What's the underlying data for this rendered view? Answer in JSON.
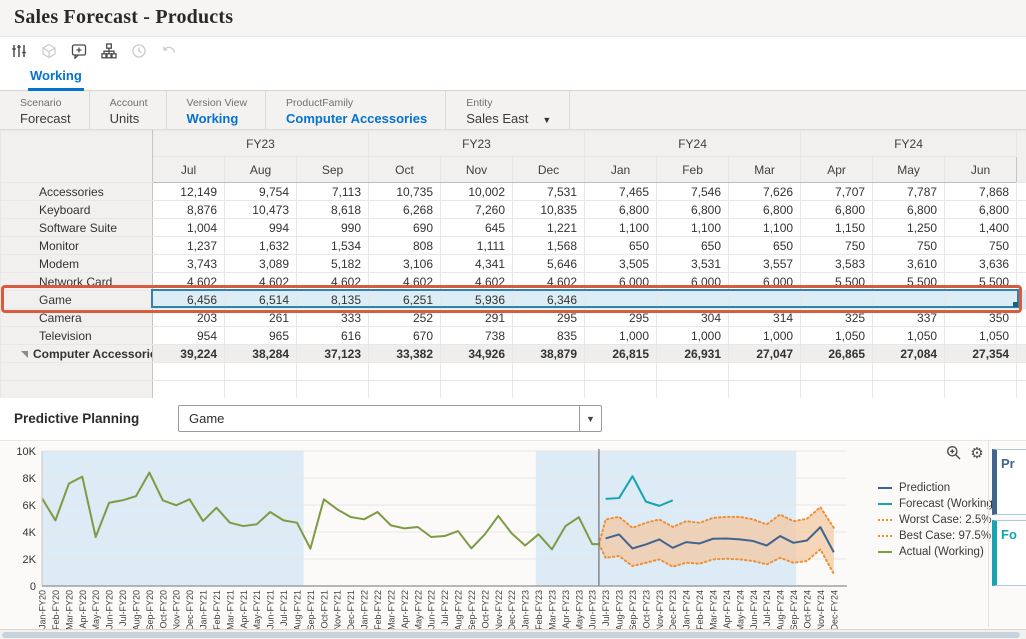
{
  "window": {
    "title": "Sales Forecast - Products"
  },
  "toolbar": {
    "icons": [
      {
        "name": "adjust-sliders-icon",
        "enabled": true
      },
      {
        "name": "cube-icon",
        "enabled": false
      },
      {
        "name": "comment-add-icon",
        "enabled": true
      },
      {
        "name": "hierarchy-icon",
        "enabled": true
      },
      {
        "name": "history-icon",
        "enabled": false
      },
      {
        "name": "undo-icon",
        "enabled": false
      }
    ]
  },
  "tabs": [
    {
      "label": "Working",
      "active": true
    }
  ],
  "pov": {
    "items": [
      {
        "label": "Scenario",
        "value": "Forecast",
        "link": false,
        "dropdown": false
      },
      {
        "label": "Account",
        "value": "Units",
        "link": false,
        "dropdown": false
      },
      {
        "label": "Version View",
        "value": "Working",
        "link": true,
        "dropdown": false
      },
      {
        "label": "ProductFamily",
        "value": "Computer Accessories",
        "link": true,
        "dropdown": false
      },
      {
        "label": "Entity",
        "value": "Sales East",
        "link": false,
        "dropdown": true
      }
    ]
  },
  "grid": {
    "column_groups": [
      {
        "label": "FY23",
        "months": [
          "Jul",
          "Aug",
          "Sep"
        ]
      },
      {
        "label": "FY23",
        "months": [
          "Oct",
          "Nov",
          "Dec"
        ]
      },
      {
        "label": "FY24",
        "months": [
          "Jan",
          "Feb",
          "Mar"
        ]
      },
      {
        "label": "FY24",
        "months": [
          "Apr",
          "May",
          "Jun"
        ]
      }
    ],
    "rows": [
      {
        "label": "Accessories",
        "values": [
          "12,149",
          "9,754",
          "7,113",
          "10,735",
          "10,002",
          "7,531",
          "7,465",
          "7,546",
          "7,626",
          "7,707",
          "7,787",
          "7,868"
        ]
      },
      {
        "label": "Keyboard",
        "values": [
          "8,876",
          "10,473",
          "8,618",
          "6,268",
          "7,260",
          "10,835",
          "6,800",
          "6,800",
          "6,800",
          "6,800",
          "6,800",
          "6,800"
        ]
      },
      {
        "label": "Software Suite",
        "values": [
          "1,004",
          "994",
          "990",
          "690",
          "645",
          "1,221",
          "1,100",
          "1,100",
          "1,100",
          "1,150",
          "1,250",
          "1,400"
        ]
      },
      {
        "label": "Monitor",
        "values": [
          "1,237",
          "1,632",
          "1,534",
          "808",
          "1,111",
          "1,568",
          "650",
          "650",
          "650",
          "750",
          "750",
          "750"
        ]
      },
      {
        "label": "Modem",
        "values": [
          "3,743",
          "3,089",
          "5,182",
          "3,106",
          "4,341",
          "5,646",
          "3,505",
          "3,531",
          "3,557",
          "3,583",
          "3,610",
          "3,636"
        ]
      },
      {
        "label": "Network Card",
        "values": [
          "4,602",
          "4,602",
          "4,602",
          "4,602",
          "4,602",
          "4,602",
          "6,000",
          "6,000",
          "6,000",
          "5,500",
          "5,500",
          "5,500"
        ]
      },
      {
        "label": "Game",
        "highlighted": true,
        "values": [
          "6,456",
          "6,514",
          "8,135",
          "6,251",
          "5,936",
          "6,346",
          "",
          "",
          "",
          "",
          "",
          ""
        ]
      },
      {
        "label": "Camera",
        "values": [
          "203",
          "261",
          "333",
          "252",
          "291",
          "295",
          "295",
          "304",
          "314",
          "325",
          "337",
          "350"
        ]
      },
      {
        "label": "Television",
        "values": [
          "954",
          "965",
          "616",
          "670",
          "738",
          "835",
          "1,000",
          "1,000",
          "1,000",
          "1,050",
          "1,050",
          "1,050"
        ]
      },
      {
        "label": "Computer Accessories",
        "total": true,
        "values": [
          "39,224",
          "38,284",
          "37,123",
          "33,382",
          "34,926",
          "38,879",
          "26,815",
          "26,931",
          "27,047",
          "26,865",
          "27,084",
          "27,354"
        ]
      }
    ],
    "empty_row_count": 2
  },
  "predictive": {
    "label": "Predictive Planning",
    "selector_value": "Game"
  },
  "chart_data": {
    "type": "line",
    "x": [
      "Jan-FY20",
      "Feb-FY20",
      "Mar-FY20",
      "Apr-FY20",
      "May-FY20",
      "Jun-FY20",
      "Jul-FY20",
      "Aug-FY20",
      "Sep-FY20",
      "Oct-FY20",
      "Nov-FY20",
      "Dec-FY20",
      "Jan-FY21",
      "Feb-FY21",
      "Mar-FY21",
      "Apr-FY21",
      "May-FY21",
      "Jun-FY21",
      "Jul-FY21",
      "Aug-FY21",
      "Sep-FY21",
      "Oct-FY21",
      "Nov-FY21",
      "Dec-FY21",
      "Jan-FY22",
      "Feb-FY22",
      "Mar-FY22",
      "Apr-FY22",
      "May-FY22",
      "Jun-FY22",
      "Jul-FY22",
      "Aug-FY22",
      "Sep-FY22",
      "Oct-FY22",
      "Nov-FY22",
      "Dec-FY22",
      "Jan-FY23",
      "Feb-FY23",
      "Mar-FY23",
      "Apr-FY23",
      "May-FY23",
      "Jun-FY23",
      "Jul-FY23",
      "Aug-FY23",
      "Sep-FY23",
      "Oct-FY23",
      "Nov-FY23",
      "Dec-FY23",
      "Jan-FY24",
      "Feb-FY24",
      "Mar-FY24",
      "Apr-FY24",
      "May-FY24",
      "Jun-FY24",
      "Jul-FY24",
      "Aug-FY24",
      "Sep-FY24",
      "Oct-FY24",
      "Nov-FY24",
      "Dec-FY24"
    ],
    "y_ticks": [
      "0",
      "2K",
      "4K",
      "6K",
      "8K",
      "10K"
    ],
    "ylim": [
      0,
      10000
    ],
    "series": [
      {
        "name": "Actual (Working)",
        "color": "#7d9b44",
        "style": "solid",
        "start_index": 0,
        "values": [
          6500,
          4860,
          7580,
          8100,
          3630,
          6170,
          6350,
          6650,
          8400,
          6350,
          5980,
          6420,
          4810,
          5800,
          4690,
          4440,
          4570,
          5480,
          4860,
          4690,
          2770,
          6420,
          5680,
          5110,
          4940,
          5480,
          4490,
          4270,
          4370,
          3630,
          3700,
          4070,
          2790,
          3830,
          5190,
          3900,
          3000,
          3830,
          2720,
          4430,
          5100,
          3100
        ]
      },
      {
        "name": "Forecast (Working)",
        "color": "#18a3b2",
        "style": "solid",
        "start_index": 42,
        "values": [
          6456,
          6514,
          8135,
          6251,
          5936,
          6346
        ]
      },
      {
        "name": "Prediction",
        "color": "#41648f",
        "style": "solid",
        "start_index": 42,
        "values": [
          3520,
          3820,
          2780,
          3080,
          3450,
          2830,
          3250,
          3150,
          3500,
          3520,
          3450,
          3330,
          3000,
          3700,
          3200,
          3370,
          4360,
          2500
        ]
      },
      {
        "name": "Best Case: 97.5%",
        "color": "#ee8f35",
        "style": "dotted",
        "start_index": 42,
        "values": [
          4930,
          5120,
          4310,
          4680,
          4930,
          4380,
          4800,
          4680,
          5050,
          5120,
          5120,
          4930,
          4560,
          5300,
          4800,
          4980,
          5840,
          4310
        ]
      },
      {
        "name": "Worst Case: 2.5%",
        "color": "#ee8f35",
        "style": "dotted",
        "start_index": 42,
        "values": [
          2090,
          2220,
          1480,
          1720,
          1970,
          1430,
          1720,
          1650,
          1970,
          2020,
          1970,
          1850,
          1600,
          2090,
          1720,
          1850,
          2710,
          900
        ]
      }
    ],
    "confidence_band": {
      "fill": "#f3c9a4",
      "upper": "Best Case: 97.5%",
      "lower": "Worst Case: 2.5%"
    },
    "highlight_bands": [
      {
        "from": 0,
        "to": 19
      },
      {
        "from": 37.3,
        "to": 55.7
      }
    ],
    "highlight_color": "#dcebf5",
    "separator_index": 41.5,
    "legend": [
      {
        "label": "Prediction",
        "color": "#41648f",
        "style": "solid"
      },
      {
        "label": "Forecast (Working)",
        "color": "#18a3b2",
        "style": "solid"
      },
      {
        "label": "Worst Case: 2.5%",
        "color": "#ee8f35",
        "style": "dotted"
      },
      {
        "label": "Best Case: 97.5%",
        "color": "#ee8f35",
        "style": "dotted"
      },
      {
        "label": "Actual (Working)",
        "color": "#7d9b44",
        "style": "solid"
      }
    ],
    "legend_position": "right"
  },
  "side_cards": [
    {
      "title": "Pr",
      "accent": "#41648f"
    },
    {
      "title": "Fo",
      "accent": "#18a3b2"
    }
  ]
}
